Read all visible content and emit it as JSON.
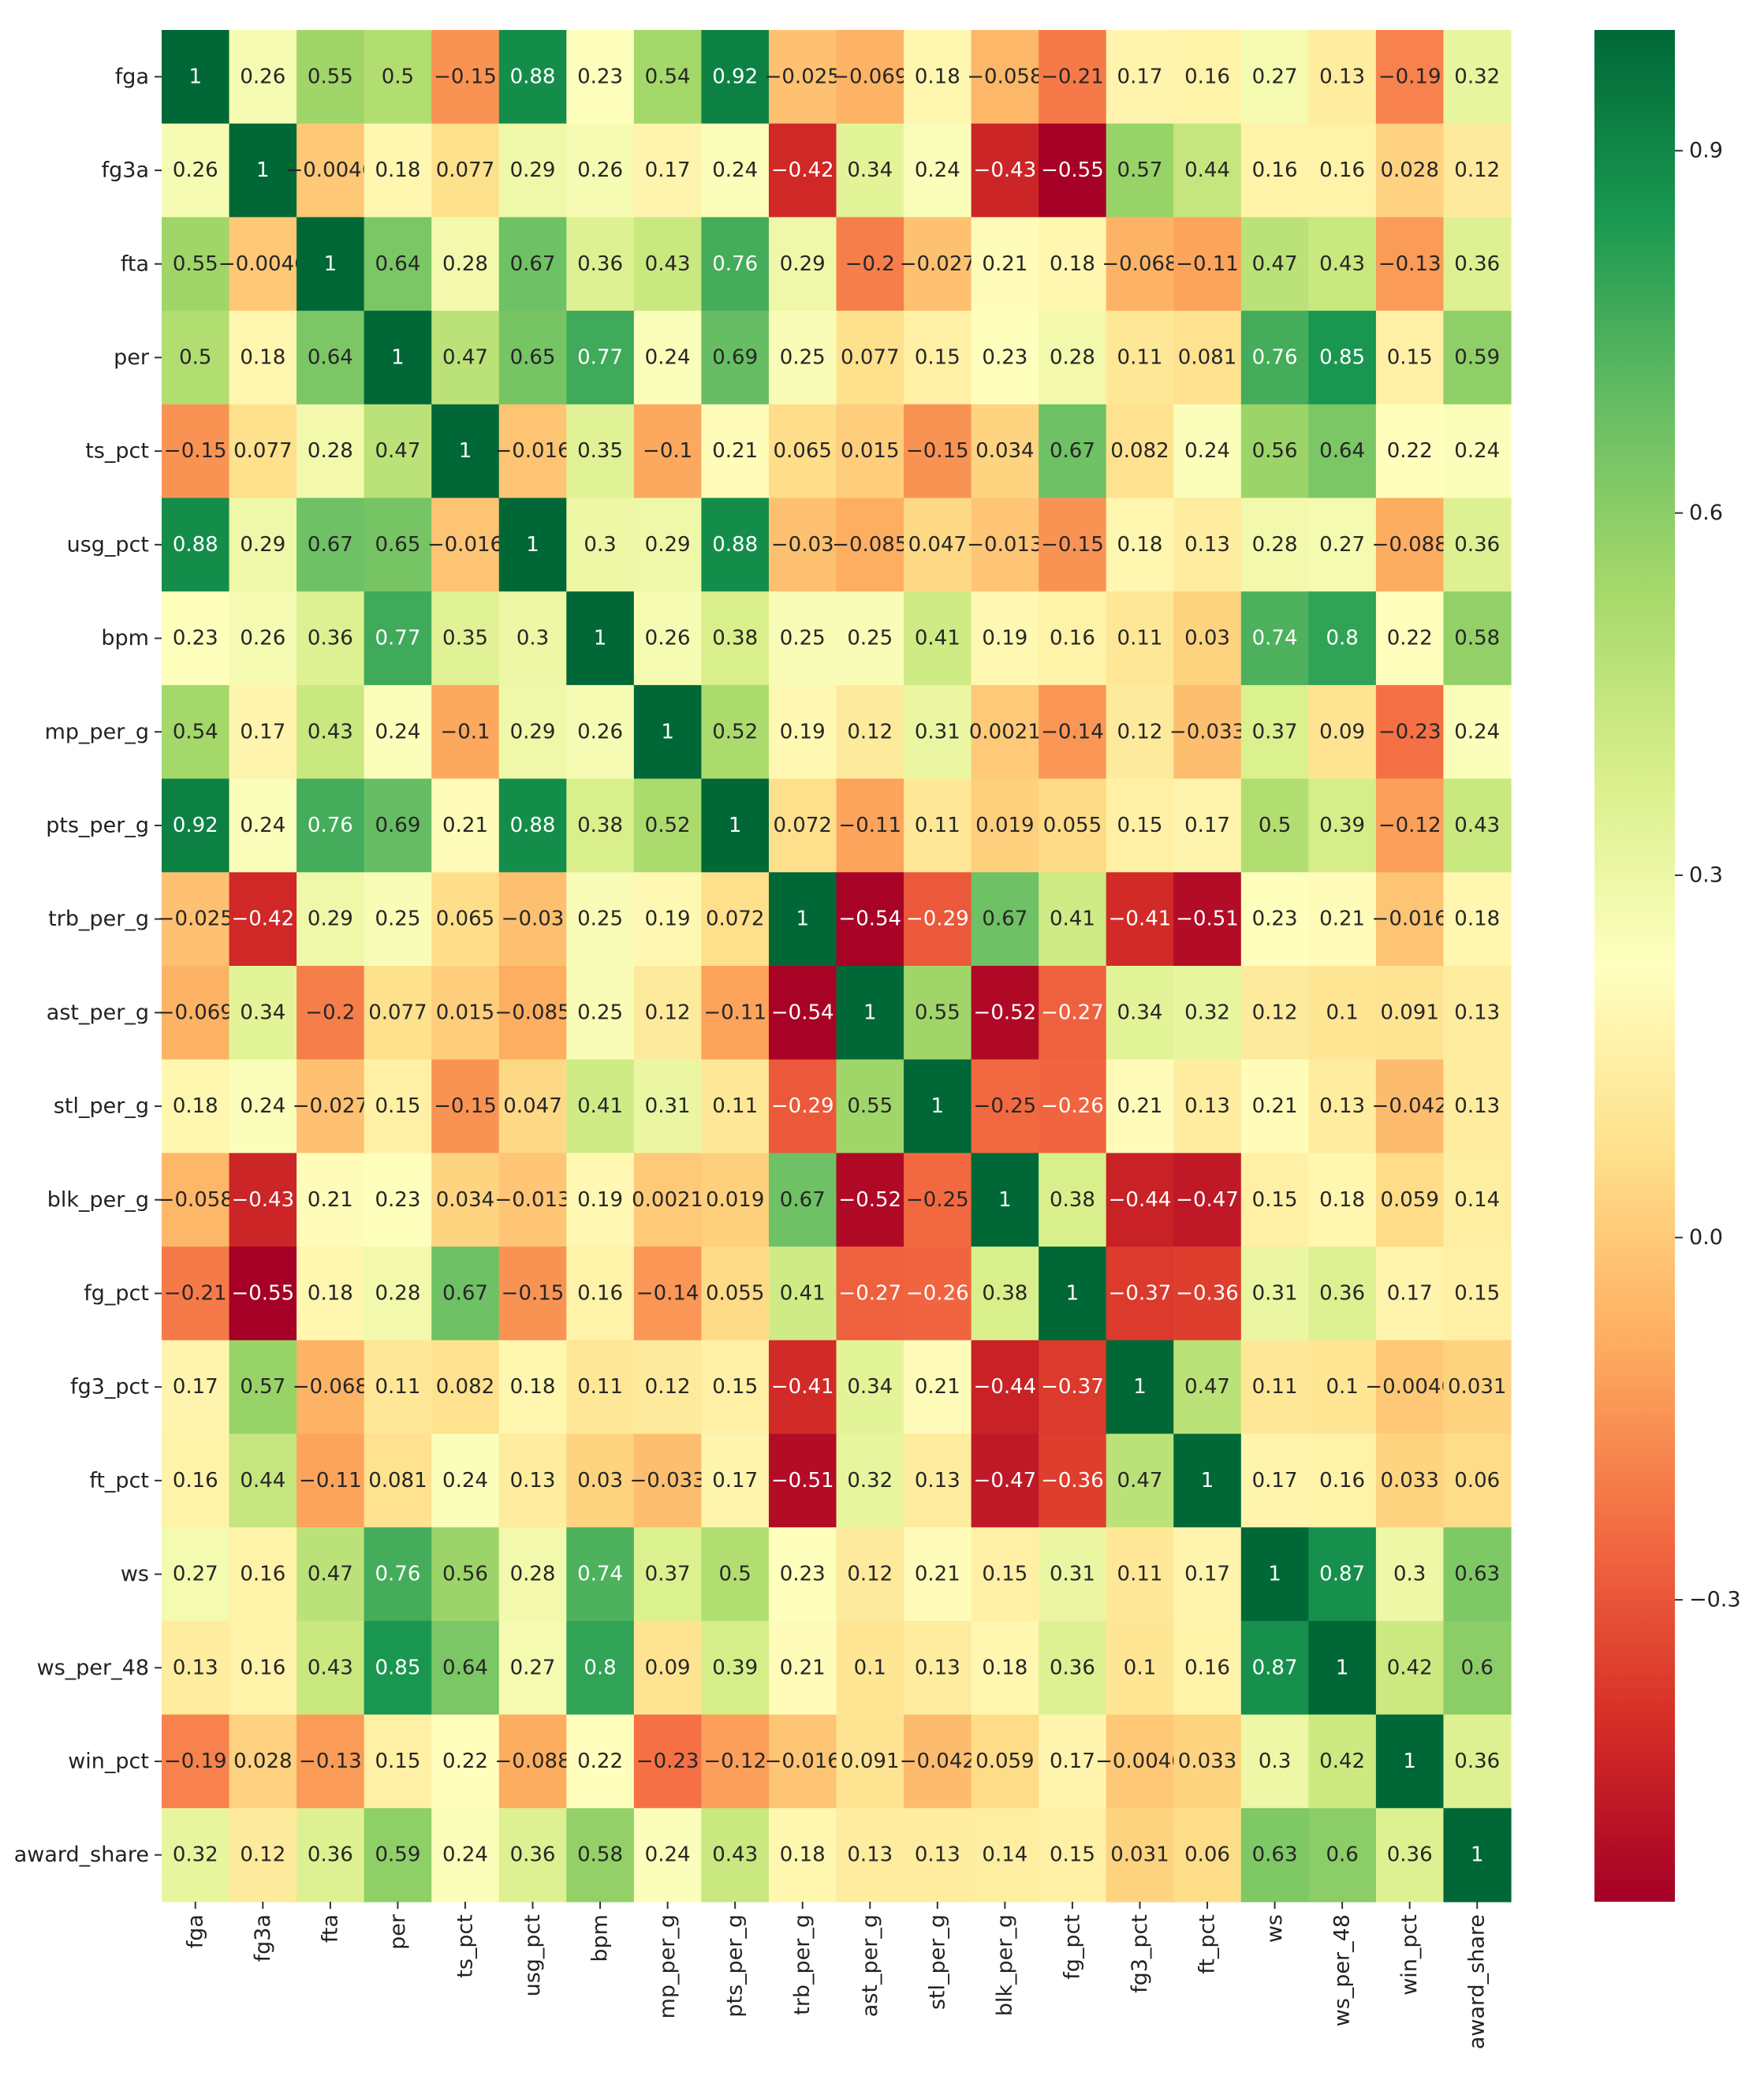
{
  "chart_data": {
    "type": "heatmap",
    "title": "",
    "xlabel": "",
    "ylabel": "",
    "colormap": "RdYlGn",
    "colormap_stops": [
      "#a50026",
      "#d73027",
      "#f46d43",
      "#fdae61",
      "#fee08b",
      "#ffffbf",
      "#d9ef8b",
      "#a6d96a",
      "#66bd63",
      "#1a9850",
      "#006837"
    ],
    "vmin": -0.55,
    "vmax": 1,
    "labels": [
      "fga",
      "fg3a",
      "fta",
      "per",
      "ts_pct",
      "usg_pct",
      "bpm",
      "mp_per_g",
      "pts_per_g",
      "trb_per_g",
      "ast_per_g",
      "stl_per_g",
      "blk_per_g",
      "fg_pct",
      "fg3_pct",
      "ft_pct",
      "ws",
      "ws_per_48",
      "win_pct",
      "award_share"
    ],
    "values": [
      [
        1,
        0.26,
        0.55,
        0.5,
        -0.15,
        0.88,
        0.23,
        0.54,
        0.92,
        -0.025,
        -0.069,
        0.18,
        -0.058,
        -0.21,
        0.17,
        0.16,
        0.27,
        0.13,
        -0.19,
        0.32
      ],
      [
        0.26,
        1,
        -0.0046,
        0.18,
        0.077,
        0.29,
        0.26,
        0.17,
        0.24,
        -0.42,
        0.34,
        0.24,
        -0.43,
        -0.55,
        0.57,
        0.44,
        0.16,
        0.16,
        0.028,
        0.12
      ],
      [
        0.55,
        -0.0046,
        1,
        0.64,
        0.28,
        0.67,
        0.36,
        0.43,
        0.76,
        0.29,
        -0.2,
        -0.027,
        0.21,
        0.18,
        -0.068,
        -0.11,
        0.47,
        0.43,
        -0.13,
        0.36
      ],
      [
        0.5,
        0.18,
        0.64,
        1,
        0.47,
        0.65,
        0.77,
        0.24,
        0.69,
        0.25,
        0.077,
        0.15,
        0.23,
        0.28,
        0.11,
        0.081,
        0.76,
        0.85,
        0.15,
        0.59
      ],
      [
        -0.15,
        0.077,
        0.28,
        0.47,
        1,
        -0.016,
        0.35,
        -0.1,
        0.21,
        0.065,
        0.015,
        -0.15,
        0.034,
        0.67,
        0.082,
        0.24,
        0.56,
        0.64,
        0.22,
        0.24
      ],
      [
        0.88,
        0.29,
        0.67,
        0.65,
        -0.016,
        1,
        0.3,
        0.29,
        0.88,
        -0.03,
        -0.085,
        0.047,
        -0.013,
        -0.15,
        0.18,
        0.13,
        0.28,
        0.27,
        -0.088,
        0.36
      ],
      [
        0.23,
        0.26,
        0.36,
        0.77,
        0.35,
        0.3,
        1,
        0.26,
        0.38,
        0.25,
        0.25,
        0.41,
        0.19,
        0.16,
        0.11,
        0.03,
        0.74,
        0.8,
        0.22,
        0.58
      ],
      [
        0.54,
        0.17,
        0.43,
        0.24,
        -0.1,
        0.29,
        0.26,
        1,
        0.52,
        0.19,
        0.12,
        0.31,
        0.0021,
        -0.14,
        0.12,
        -0.033,
        0.37,
        0.09,
        -0.23,
        0.24
      ],
      [
        0.92,
        0.24,
        0.76,
        0.69,
        0.21,
        0.88,
        0.38,
        0.52,
        1,
        0.072,
        -0.11,
        0.11,
        0.019,
        0.055,
        0.15,
        0.17,
        0.5,
        0.39,
        -0.12,
        0.43
      ],
      [
        -0.025,
        -0.42,
        0.29,
        0.25,
        0.065,
        -0.03,
        0.25,
        0.19,
        0.072,
        1,
        -0.54,
        -0.29,
        0.67,
        0.41,
        -0.41,
        -0.51,
        0.23,
        0.21,
        -0.016,
        0.18
      ],
      [
        -0.069,
        0.34,
        -0.2,
        0.077,
        0.015,
        -0.085,
        0.25,
        0.12,
        -0.11,
        -0.54,
        1,
        0.55,
        -0.52,
        -0.27,
        0.34,
        0.32,
        0.12,
        0.1,
        0.091,
        0.13
      ],
      [
        0.18,
        0.24,
        -0.027,
        0.15,
        -0.15,
        0.047,
        0.41,
        0.31,
        0.11,
        -0.29,
        0.55,
        1,
        -0.25,
        -0.26,
        0.21,
        0.13,
        0.21,
        0.13,
        -0.042,
        0.13
      ],
      [
        -0.058,
        -0.43,
        0.21,
        0.23,
        0.034,
        -0.013,
        0.19,
        0.0021,
        0.019,
        0.67,
        -0.52,
        -0.25,
        1,
        0.38,
        -0.44,
        -0.47,
        0.15,
        0.18,
        0.059,
        0.14
      ],
      [
        -0.21,
        -0.55,
        0.18,
        0.28,
        0.67,
        -0.15,
        0.16,
        -0.14,
        0.055,
        0.41,
        -0.27,
        -0.26,
        0.38,
        1,
        -0.37,
        -0.36,
        0.31,
        0.36,
        0.17,
        0.15
      ],
      [
        0.17,
        0.57,
        -0.068,
        0.11,
        0.082,
        0.18,
        0.11,
        0.12,
        0.15,
        -0.41,
        0.34,
        0.21,
        -0.44,
        -0.37,
        1,
        0.47,
        0.11,
        0.1,
        -0.0046,
        0.031
      ],
      [
        0.16,
        0.44,
        -0.11,
        0.081,
        0.24,
        0.13,
        0.03,
        -0.033,
        0.17,
        -0.51,
        0.32,
        0.13,
        -0.47,
        -0.36,
        0.47,
        1,
        0.17,
        0.16,
        0.033,
        0.06
      ],
      [
        0.27,
        0.16,
        0.47,
        0.76,
        0.56,
        0.28,
        0.74,
        0.37,
        0.5,
        0.23,
        0.12,
        0.21,
        0.15,
        0.31,
        0.11,
        0.17,
        1,
        0.87,
        0.3,
        0.63
      ],
      [
        0.13,
        0.16,
        0.43,
        0.85,
        0.64,
        0.27,
        0.8,
        0.09,
        0.39,
        0.21,
        0.1,
        0.13,
        0.18,
        0.36,
        0.1,
        0.16,
        0.87,
        1,
        0.42,
        0.6
      ],
      [
        -0.19,
        0.028,
        -0.13,
        0.15,
        0.22,
        -0.088,
        0.22,
        -0.23,
        -0.12,
        -0.016,
        0.091,
        -0.042,
        0.059,
        0.17,
        -0.0046,
        0.033,
        0.3,
        0.42,
        1,
        0.36
      ],
      [
        0.32,
        0.12,
        0.36,
        0.59,
        0.24,
        0.36,
        0.58,
        0.24,
        0.43,
        0.18,
        0.13,
        0.13,
        0.14,
        0.15,
        0.031,
        0.06,
        0.63,
        0.6,
        0.36,
        1
      ]
    ],
    "colorbar": {
      "ticks": [
        0.9,
        0.6,
        0.3,
        0.0,
        -0.3
      ],
      "tick_labels": [
        "0.9",
        "0.6",
        "0.3",
        "0.0",
        "−0.3"
      ]
    }
  }
}
